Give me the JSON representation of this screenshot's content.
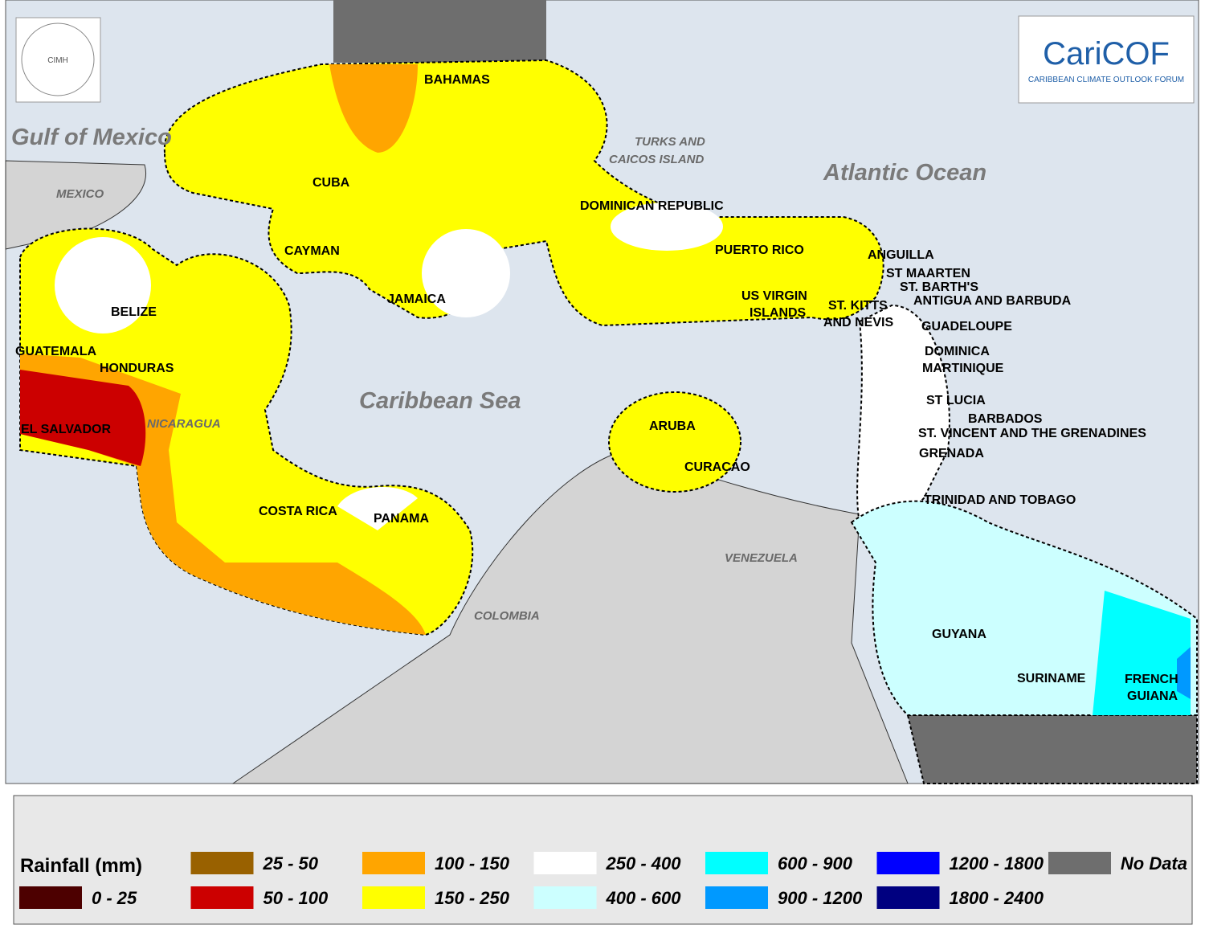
{
  "logos": {
    "cimh": "CIMH",
    "caricof": {
      "name": "CariCOF",
      "subtitle": "CARIBBEAN CLIMATE OUTLOOK FORUM"
    }
  },
  "water_labels": [
    "Gulf of Mexico",
    "Caribbean Sea",
    "Atlantic Ocean"
  ],
  "gray_labels": [
    "MEXICO",
    "NICARAGUA",
    "COLOMBIA",
    "VENEZUELA",
    "TURKS AND",
    "CAICOS ISLAND"
  ],
  "country_labels": [
    "BAHAMAS",
    "CUBA",
    "CAYMAN",
    "JAMAICA",
    "DOMINICAN REPUBLIC",
    "PUERTO RICO",
    "US VIRGIN",
    "ISLANDS",
    "ANGUILLA",
    "ST MAARTEN",
    "ST. BARTH'S",
    "ANTIGUA AND BARBUDA",
    "ST. KITTS",
    "AND NEVIS",
    "GUADELOUPE",
    "DOMINICA",
    "MARTINIQUE",
    "ST LUCIA",
    "BARBADOS",
    "ST. VINCENT AND THE GRENADINES",
    "GRENADA",
    "TRINIDAD AND TOBAGO",
    "BELIZE",
    "GUATEMALA",
    "HONDURAS",
    "EL SALVADOR",
    "COSTA RICA",
    "PANAMA",
    "ARUBA",
    "CURACAO",
    "GUYANA",
    "SURINAME",
    "FRENCH",
    "GUIANA"
  ],
  "legend": {
    "title": "Rainfall (mm)",
    "items": [
      {
        "label": "0 - 25",
        "color": "#4d0000"
      },
      {
        "label": "25 - 50",
        "color": "#996100"
      },
      {
        "label": "50 - 100",
        "color": "#cc0000"
      },
      {
        "label": "100 - 150",
        "color": "#ffa500"
      },
      {
        "label": "150 - 250",
        "color": "#ffff00"
      },
      {
        "label": "250 - 400",
        "color": "#ffffff"
      },
      {
        "label": "400 - 600",
        "color": "#ccffff"
      },
      {
        "label": "600 - 900",
        "color": "#00ffff"
      },
      {
        "label": "900 - 1200",
        "color": "#0099ff"
      },
      {
        "label": "1200 - 1800",
        "color": "#0000ff"
      },
      {
        "label": "1800 - 2400",
        "color": "#000080"
      },
      {
        "label": "No Data",
        "color": "#6e6e6e"
      }
    ]
  }
}
